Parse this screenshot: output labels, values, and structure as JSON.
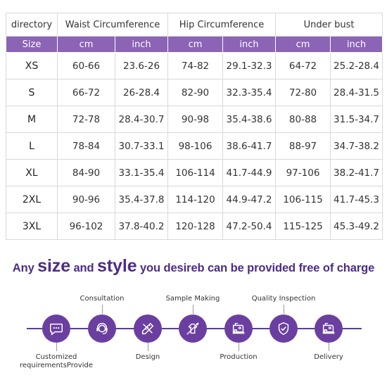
{
  "table": {
    "header": [
      "directory",
      "Waist Circumference",
      "Hip Circumference",
      "Under bust"
    ],
    "size_label": "Size",
    "units": [
      "cm",
      "inch",
      "cm",
      "inch",
      "cm",
      "inch"
    ],
    "rows": [
      [
        "XS",
        "60-66",
        "23.6-26",
        "74-82",
        "29.1-32.3",
        "64-72",
        "25.2-28.4"
      ],
      [
        "S",
        "66-72",
        "26-28.4",
        "82-90",
        "32.3-35.4",
        "72-80",
        "28.4-31.5"
      ],
      [
        "M",
        "72-78",
        "28.4-30.7",
        "90-98",
        "35.4-38.6",
        "80-88",
        "31.5-34.7"
      ],
      [
        "L",
        "78-84",
        "30.7-33.1",
        "98-106",
        "38.6-41.7",
        "88-97",
        "34.7-38.2"
      ],
      [
        "XL",
        "84-90",
        "33.1-35.4",
        "106-114",
        "41.7-44.9",
        "97-106",
        "38.2-41.7"
      ],
      [
        "2XL",
        "90-96",
        "35.4-37.8",
        "114-120",
        "44.9-47.2",
        "106-115",
        "41.7-45.3"
      ],
      [
        "3XL",
        "96-102",
        "37.8-40.2",
        "120-128",
        "47.2-50.4",
        "115-125",
        "45.3-49.2"
      ]
    ]
  },
  "headline": {
    "part1": "Any ",
    "size": "size",
    "part2": " and ",
    "style": "style",
    "part3": " you desireb can be provided free of charge"
  },
  "process": {
    "steps": [
      {
        "label_line1": "Customized",
        "label_line2": "requirementsProvide",
        "icon": "chat-bubble-icon"
      },
      {
        "label": "Consultation",
        "icon": "customer-service-icon"
      },
      {
        "label": "Design",
        "icon": "ruler-pencil-icon"
      },
      {
        "label": "Sample Making",
        "icon": "sewing-icon"
      },
      {
        "label": "Production",
        "icon": "sewing-machine-icon"
      },
      {
        "label": "Quality Inspection",
        "icon": "shield-check-icon"
      },
      {
        "label": "Delivery",
        "icon": "sewing-machine-icon"
      }
    ]
  },
  "colors": {
    "header_band": "#8b64b6",
    "headline_text": "#4d2c86",
    "step_circle": "#6a3fa0",
    "process_line": "#5a3f8c"
  }
}
